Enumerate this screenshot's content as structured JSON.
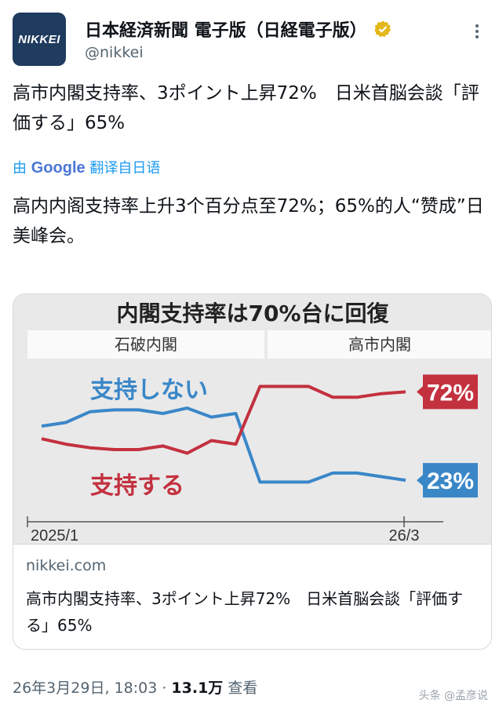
{
  "account": {
    "avatar_text": "NIKKEI",
    "display_name": "日本経済新聞 電子版（日経電子版）",
    "handle": "@nikkei",
    "avatar_color": "#1f3b5e",
    "verified_color": "#e2b719"
  },
  "tweet": {
    "text": "高市内閣支持率、3ポイント上昇72%　日米首脳会談「評価する」65%",
    "translate_prefix": "由",
    "translate_brand": "Google",
    "translate_suffix": "翻译自日语",
    "translation": "高内内阁支持率上升3个百分点至72%；65%的人“赞成”日美峰会。"
  },
  "card": {
    "domain": "nikkei.com",
    "title": "高市内閣支持率、3ポイント上昇72%　日米首脳会談「評価する」65%"
  },
  "meta": {
    "date": "26年3月29日, 18:03",
    "separator": " · ",
    "views_count": "13.1万",
    "views_label": " 查看"
  },
  "watermark": "头条 @孟彦说",
  "chart_data": {
    "type": "line",
    "title": "内閣支持率は70%台に回復",
    "periods": [
      "石破内閣",
      "高市内閣"
    ],
    "x_start_label": "2025/1",
    "x_end_label": "26/3",
    "ylim": [
      0,
      100
    ],
    "grid": false,
    "series": [
      {
        "name": "支持しない",
        "color": "#3a87c8",
        "end_label": "23%",
        "values": [
          53,
          55,
          61,
          62,
          62,
          60,
          63,
          58,
          60,
          22,
          22,
          22,
          27,
          27,
          25,
          23
        ]
      },
      {
        "name": "支持する",
        "color": "#c3313f",
        "end_label": "72%",
        "values": [
          46,
          43,
          41,
          40,
          40,
          42,
          38,
          45,
          43,
          75,
          75,
          75,
          69,
          69,
          71,
          72
        ]
      }
    ]
  }
}
